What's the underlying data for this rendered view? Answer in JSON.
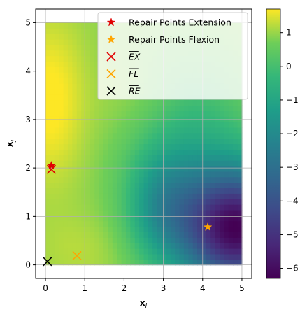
{
  "chart_data": {
    "type": "scatter",
    "title": "",
    "xlabel": "x",
    "xlabel_sub": "i",
    "ylabel": "x",
    "ylabel_sub": "j",
    "xlim": [
      -0.25,
      5.25
    ],
    "ylim": [
      -0.28,
      5.28
    ],
    "xticks": [
      0,
      1,
      2,
      3,
      4,
      5
    ],
    "yticks": [
      0,
      1,
      2,
      3,
      4,
      5
    ],
    "grid": true,
    "legend_position": "top-right",
    "colormap": "viridis",
    "colorbar": {
      "min": -6.3,
      "max": 1.7,
      "ticks": [
        1,
        0,
        -1,
        -2,
        -3,
        -4,
        -5,
        -6
      ],
      "tick_labels": [
        "1",
        "0",
        "−1",
        "−2",
        "−3",
        "−4",
        "−5",
        "−6"
      ]
    },
    "background_field": {
      "x_range": [
        0,
        5
      ],
      "y_range": [
        0,
        5
      ],
      "description_values": {
        "max_near": [
          0.1,
          3.4,
          1.6
        ],
        "min_near": [
          4.8,
          0.7,
          -6.2
        ],
        "secondary_high_near": [
          2.5,
          3.2,
          0.7
        ]
      }
    },
    "series": [
      {
        "name": "Repair Points Extension",
        "marker": "star",
        "color": "#e00000",
        "points": [
          [
            0.15,
            2.05
          ]
        ]
      },
      {
        "name": "Repair Points Flexion",
        "marker": "star",
        "color": "#ffa500",
        "points": [
          [
            4.13,
            0.78
          ]
        ]
      },
      {
        "name": "EX",
        "marker": "x",
        "color": "#e00000",
        "overline": true,
        "points": [
          [
            0.15,
            1.97
          ]
        ]
      },
      {
        "name": "FL",
        "marker": "x",
        "color": "#ffa500",
        "overline": true,
        "points": [
          [
            0.8,
            0.19
          ]
        ]
      },
      {
        "name": "RE",
        "marker": "x",
        "color": "#000000",
        "overline": true,
        "points": [
          [
            0.05,
            0.07
          ]
        ]
      }
    ]
  }
}
